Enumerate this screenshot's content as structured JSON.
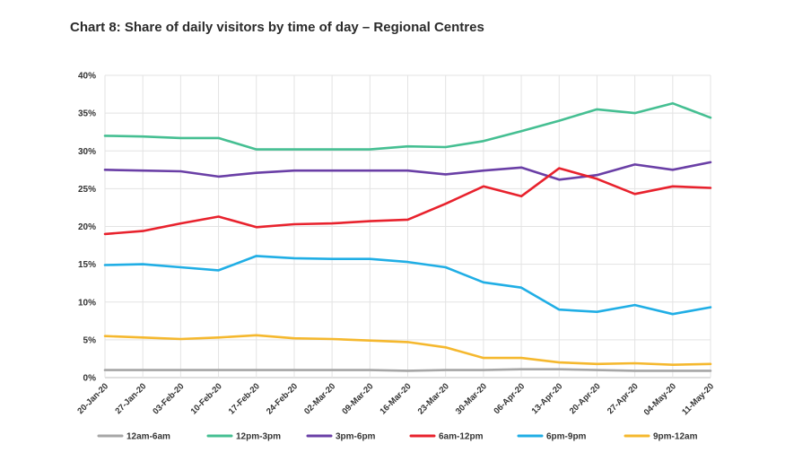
{
  "chart_data": {
    "type": "line",
    "title": "Chart 8: Share of daily visitors by time of day – Regional Centres",
    "xlabel": "",
    "ylabel": "",
    "ylim": [
      0,
      40
    ],
    "grid": true,
    "legend_position": "bottom",
    "y_ticks": [
      "0%",
      "5%",
      "10%",
      "15%",
      "20%",
      "25%",
      "30%",
      "35%",
      "40%"
    ],
    "categories": [
      "20-Jan-20",
      "27-Jan-20",
      "03-Feb-20",
      "10-Feb-20",
      "17-Feb-20",
      "24-Feb-20",
      "02-Mar-20",
      "09-Mar-20",
      "16-Mar-20",
      "23-Mar-20",
      "30-Mar-20",
      "06-Apr-20",
      "13-Apr-20",
      "20-Apr-20",
      "27-Apr-20",
      "04-May-20",
      "11-May-20"
    ],
    "series": [
      {
        "name": "12am-6am",
        "color": "#a6a6a6",
        "values": [
          1.0,
          1.0,
          1.0,
          1.0,
          1.0,
          1.0,
          1.0,
          1.0,
          0.9,
          1.0,
          1.0,
          1.1,
          1.1,
          1.0,
          0.9,
          0.9,
          0.9
        ]
      },
      {
        "name": "12pm-3pm",
        "color": "#45bf92",
        "values": [
          32.0,
          31.9,
          31.7,
          31.7,
          30.2,
          30.2,
          30.2,
          30.2,
          30.6,
          30.5,
          31.3,
          32.6,
          34.0,
          35.5,
          35.0,
          36.3,
          34.4
        ]
      },
      {
        "name": "3pm-6pm",
        "color": "#6a3fa6",
        "values": [
          27.5,
          27.4,
          27.3,
          26.6,
          27.1,
          27.4,
          27.4,
          27.4,
          27.4,
          26.9,
          27.4,
          27.8,
          26.2,
          26.8,
          28.2,
          27.5,
          28.5
        ]
      },
      {
        "name": "6am-12pm",
        "color": "#e8222d",
        "values": [
          19.0,
          19.4,
          20.4,
          21.3,
          19.9,
          20.3,
          20.4,
          20.7,
          20.9,
          23.0,
          25.3,
          24.0,
          27.7,
          26.3,
          24.3,
          25.3,
          25.1
        ]
      },
      {
        "name": "6pm-9pm",
        "color": "#20aee5",
        "values": [
          14.9,
          15.0,
          14.6,
          14.2,
          16.1,
          15.8,
          15.7,
          15.7,
          15.3,
          14.6,
          12.6,
          11.9,
          9.0,
          8.7,
          9.6,
          8.4,
          9.3
        ]
      },
      {
        "name": "9pm-12am",
        "color": "#f5b82e",
        "values": [
          5.5,
          5.3,
          5.1,
          5.3,
          5.6,
          5.2,
          5.1,
          4.9,
          4.7,
          4.0,
          2.6,
          2.6,
          2.0,
          1.8,
          1.9,
          1.7,
          1.8
        ]
      }
    ]
  }
}
